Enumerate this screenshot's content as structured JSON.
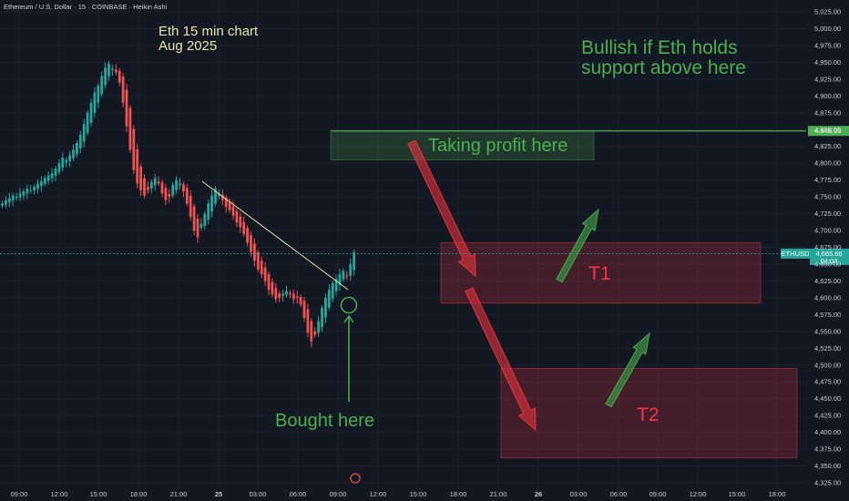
{
  "header": {
    "symbol_line": "Ethereum / U.S. Dollar · 15 · COINBASE · Heikin Ashi"
  },
  "annotations": {
    "chart_note_line1": "Eth 15 min chart",
    "chart_note_line2": "Aug 2025",
    "bullish_line1": "Bullish if Eth holds",
    "bullish_line2": "support above here",
    "taking_profit": "Taking profit here",
    "bought_here": "Bought here",
    "t1": "T1",
    "t2": "T2"
  },
  "price_labels": {
    "resistance_level": "4,848.00",
    "ticker": "ETHUSD",
    "last_price": "4,665.66",
    "countdown": "04:04"
  },
  "colors": {
    "background": "#131722",
    "bull": "#26a69a",
    "bear": "#ef5350",
    "green_annotation": "#4caf50",
    "red_annotation": "#f23645",
    "note_text": "#e8e4a6"
  },
  "chart_data": {
    "type": "candlestick",
    "style": "Heikin Ashi",
    "interval": "15",
    "exchange": "COINBASE",
    "x_ticks": [
      "09:00",
      "12:00",
      "15:00",
      "18:00",
      "21:00",
      "25",
      "03:00",
      "06:00",
      "09:00",
      "12:00",
      "15:00",
      "18:00",
      "21:00",
      "26",
      "03:00",
      "06:00",
      "09:00",
      "12:00",
      "15:00",
      "18:00"
    ],
    "y_ticks": [
      5025,
      5000,
      4975,
      4950,
      4925,
      4900,
      4875,
      4850,
      4825,
      4800,
      4775,
      4750,
      4725,
      4700,
      4675,
      4650,
      4625,
      4600,
      4575,
      4550,
      4525,
      4500,
      4475,
      4450,
      4425,
      4400,
      4375,
      4350,
      4325
    ],
    "ylim": [
      4320,
      5035
    ],
    "resistance_level": 4848.0,
    "last_price": 4665.66,
    "trendline": {
      "from": [
        "~22:00",
        4773
      ],
      "to": [
        "~09:30",
        4612
      ]
    },
    "target_zones": [
      {
        "name": "T1",
        "y_from": 4592,
        "y_to": 4682
      },
      {
        "name": "T2",
        "y_from": 4362,
        "y_to": 4495
      }
    ],
    "profit_zone": {
      "y_from": 4805,
      "y_to": 4848
    },
    "candles": [
      4740,
      4745,
      4748,
      4752,
      4750,
      4755,
      4758,
      4762,
      4760,
      4765,
      4770,
      4773,
      4778,
      4782,
      4785,
      4792,
      4800,
      4808,
      4805,
      4812,
      4820,
      4830,
      4842,
      4858,
      4875,
      4890,
      4905,
      4915,
      4930,
      4942,
      4948,
      4940,
      4935,
      4920,
      4890,
      4855,
      4820,
      4790,
      4770,
      4760,
      4752,
      4760,
      4772,
      4778,
      4770,
      4755,
      4745,
      4750,
      4768,
      4775,
      4770,
      4758,
      4740,
      4720,
      4700,
      4690,
      4710,
      4725,
      4740,
      4752,
      4762,
      4755,
      4745,
      4735,
      4730,
      4722,
      4712,
      4705,
      4695,
      4682,
      4668,
      4655,
      4642,
      4635,
      4625,
      4612,
      4605,
      4598,
      4600,
      4606,
      4610,
      4605,
      4598,
      4600,
      4590,
      4570,
      4548,
      4535,
      4545,
      4565,
      4585,
      4600,
      4612,
      4622,
      4628,
      4635,
      4640,
      4632,
      4650,
      4668
    ]
  }
}
